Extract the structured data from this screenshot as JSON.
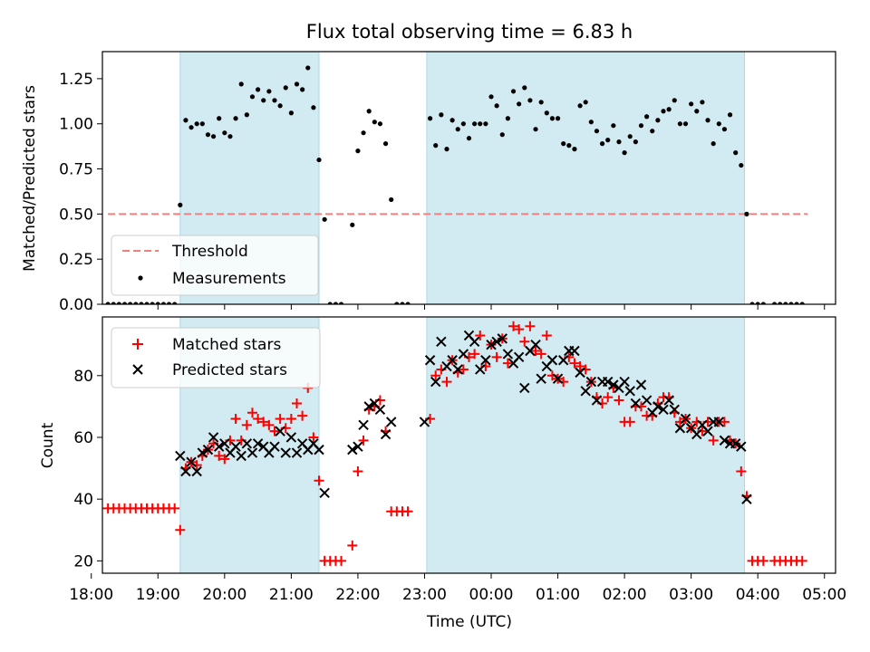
{
  "figure": {
    "title": "Flux total observing time = 6.83 h",
    "xlabel": "Time (UTC)"
  },
  "colors": {
    "shade": "#add8e6",
    "threshold": "#f08080",
    "measurement": "#000000",
    "matched": "#ff0000",
    "predicted": "#000000"
  },
  "chart_data": [
    {
      "type": "scatter",
      "panel": "top",
      "ylabel": "Matched/Predicted stars",
      "xlim": [
        "18:10",
        "05:10"
      ],
      "ylim": [
        0,
        1.4
      ],
      "x_ticks": [
        "18:00",
        "19:00",
        "20:00",
        "21:00",
        "22:00",
        "23:00",
        "00:00",
        "01:00",
        "02:00",
        "03:00",
        "04:00",
        "05:00"
      ],
      "y_ticks": [
        "0.00",
        "0.25",
        "0.50",
        "0.75",
        "1.00",
        "1.25"
      ],
      "shaded_intervals": [
        [
          "19:20",
          "21:25"
        ],
        [
          "23:02",
          "03:48"
        ]
      ],
      "legend_position": "lower left",
      "threshold": {
        "name": "Threshold",
        "value": 0.5,
        "x_range": [
          "18:15",
          "04:45"
        ],
        "style": "dashed"
      },
      "series": [
        {
          "name": "Measurements",
          "x": [
            "18:15",
            "18:20",
            "18:25",
            "18:30",
            "18:35",
            "18:40",
            "18:45",
            "18:50",
            "18:55",
            "19:00",
            "19:05",
            "19:10",
            "19:15",
            "19:20",
            "19:25",
            "19:30",
            "19:35",
            "19:40",
            "19:45",
            "19:50",
            "19:55",
            "20:00",
            "20:05",
            "20:10",
            "20:15",
            "20:20",
            "20:25",
            "20:30",
            "20:35",
            "20:40",
            "20:45",
            "20:50",
            "20:55",
            "21:00",
            "21:05",
            "21:10",
            "21:15",
            "21:20",
            "21:25",
            "21:30",
            "21:35",
            "21:40",
            "21:45",
            "21:55",
            "22:00",
            "22:05",
            "22:10",
            "22:15",
            "22:20",
            "22:25",
            "22:30",
            "22:35",
            "22:40",
            "22:45",
            "23:05",
            "23:10",
            "23:15",
            "23:20",
            "23:25",
            "23:30",
            "23:35",
            "23:40",
            "23:45",
            "23:50",
            "23:55",
            "00:00",
            "00:05",
            "00:10",
            "00:15",
            "00:20",
            "00:25",
            "00:30",
            "00:35",
            "00:40",
            "00:45",
            "00:50",
            "00:55",
            "01:00",
            "01:05",
            "01:10",
            "01:15",
            "01:20",
            "01:25",
            "01:30",
            "01:35",
            "01:40",
            "01:45",
            "01:50",
            "01:55",
            "02:00",
            "02:05",
            "02:10",
            "02:15",
            "02:20",
            "02:25",
            "02:30",
            "02:35",
            "02:40",
            "02:45",
            "02:50",
            "02:55",
            "03:00",
            "03:05",
            "03:10",
            "03:15",
            "03:20",
            "03:25",
            "03:30",
            "03:35",
            "03:40",
            "03:45",
            "03:50",
            "03:55",
            "04:00",
            "04:05",
            "04:15",
            "04:20",
            "04:25",
            "04:30",
            "04:35",
            "04:40"
          ],
          "y": [
            0,
            0,
            0,
            0,
            0,
            0,
            0,
            0,
            0,
            0,
            0,
            0,
            0,
            0.55,
            1.02,
            0.98,
            1.0,
            1.0,
            0.94,
            0.93,
            1.03,
            0.95,
            0.93,
            1.03,
            1.22,
            1.05,
            1.15,
            1.19,
            1.13,
            1.18,
            1.13,
            1.1,
            1.2,
            1.06,
            1.22,
            1.19,
            1.31,
            1.09,
            0.8,
            0.47,
            0,
            0,
            0,
            0.44,
            0.85,
            0.95,
            1.07,
            1.01,
            1.0,
            0.89,
            0.58,
            0,
            0,
            0,
            1.03,
            0.88,
            1.05,
            0.86,
            1.02,
            0.97,
            1.0,
            0.92,
            1.0,
            1.0,
            1.0,
            1.15,
            1.1,
            0.94,
            1.03,
            1.18,
            1.11,
            1.2,
            1.13,
            0.97,
            1.12,
            1.06,
            1.03,
            1.03,
            0.89,
            0.88,
            0.86,
            1.1,
            1.12,
            1.01,
            0.96,
            0.89,
            0.91,
            0.99,
            0.9,
            0.84,
            0.93,
            0.9,
            0.99,
            1.04,
            0.96,
            1.02,
            1.07,
            1.08,
            1.13,
            1.0,
            1.0,
            1.11,
            1.07,
            1.12,
            1.02,
            0.89,
            1.0,
            0.97,
            1.05,
            0.84,
            0.77,
            0.5,
            0,
            0,
            0,
            0,
            0,
            0,
            0,
            0,
            0
          ]
        }
      ]
    },
    {
      "type": "scatter",
      "panel": "bottom",
      "ylabel": "Count",
      "xlabel": "Time (UTC)",
      "xlim": [
        "18:10",
        "05:10"
      ],
      "ylim": [
        16,
        99
      ],
      "x_ticks": [
        "18:00",
        "19:00",
        "20:00",
        "21:00",
        "22:00",
        "23:00",
        "00:00",
        "01:00",
        "02:00",
        "03:00",
        "04:00",
        "05:00"
      ],
      "y_ticks": [
        "20",
        "40",
        "60",
        "80"
      ],
      "shaded_intervals": [
        [
          "19:20",
          "21:25"
        ],
        [
          "23:02",
          "03:48"
        ]
      ],
      "legend_position": "upper left",
      "series": [
        {
          "name": "Matched stars",
          "marker": "+",
          "x": [
            "18:15",
            "18:20",
            "18:25",
            "18:30",
            "18:35",
            "18:40",
            "18:45",
            "18:50",
            "18:55",
            "19:00",
            "19:05",
            "19:10",
            "19:15",
            "19:20",
            "19:25",
            "19:30",
            "19:35",
            "19:40",
            "19:45",
            "19:50",
            "19:55",
            "20:00",
            "20:05",
            "20:10",
            "20:15",
            "20:20",
            "20:25",
            "20:30",
            "20:35",
            "20:40",
            "20:45",
            "20:50",
            "20:55",
            "21:00",
            "21:05",
            "21:10",
            "21:15",
            "21:20",
            "21:25",
            "21:30",
            "21:35",
            "21:40",
            "21:45",
            "21:55",
            "22:00",
            "22:05",
            "22:10",
            "22:15",
            "22:20",
            "22:25",
            "22:30",
            "22:35",
            "22:40",
            "22:45",
            "23:05",
            "23:10",
            "23:15",
            "23:20",
            "23:25",
            "23:30",
            "23:35",
            "23:40",
            "23:45",
            "23:50",
            "23:55",
            "00:00",
            "00:05",
            "00:10",
            "00:15",
            "00:20",
            "00:25",
            "00:30",
            "00:35",
            "00:40",
            "00:45",
            "00:50",
            "00:55",
            "01:00",
            "01:05",
            "01:10",
            "01:15",
            "01:20",
            "01:25",
            "01:30",
            "01:35",
            "01:40",
            "01:45",
            "01:50",
            "01:55",
            "02:00",
            "02:05",
            "02:10",
            "02:15",
            "02:20",
            "02:25",
            "02:30",
            "02:35",
            "02:40",
            "02:45",
            "02:50",
            "02:55",
            "03:00",
            "03:05",
            "03:10",
            "03:15",
            "03:20",
            "03:25",
            "03:30",
            "03:35",
            "03:40",
            "03:45",
            "03:50",
            "03:55",
            "04:00",
            "04:05",
            "04:15",
            "04:20",
            "04:25",
            "04:30",
            "04:35",
            "04:40"
          ],
          "y": [
            37,
            37,
            37,
            37,
            37,
            37,
            37,
            37,
            37,
            37,
            37,
            37,
            37,
            30,
            50,
            52,
            51,
            54,
            56,
            58,
            54,
            53,
            59,
            66,
            59,
            64,
            68,
            66,
            65,
            64,
            62,
            66,
            63,
            66,
            71,
            67,
            76,
            60,
            46,
            20,
            20,
            20,
            20,
            25,
            49,
            59,
            69,
            70,
            72,
            62,
            36,
            36,
            36,
            36,
            66,
            80,
            82,
            78,
            85,
            81,
            82,
            86,
            87,
            93,
            83,
            90,
            86,
            92,
            84,
            96,
            95,
            91,
            96,
            88,
            87,
            93,
            80,
            79,
            78,
            86,
            84,
            83,
            82,
            78,
            73,
            71,
            73,
            76,
            72,
            65,
            65,
            70,
            70,
            67,
            67,
            71,
            73,
            73,
            68,
            65,
            66,
            63,
            65,
            62,
            65,
            59,
            65,
            65,
            59,
            58,
            49,
            41,
            20,
            20,
            20,
            20,
            20,
            20,
            20,
            20,
            20
          ]
        },
        {
          "name": "Predicted stars",
          "marker": "x",
          "x": [
            "19:20",
            "19:25",
            "19:30",
            "19:35",
            "19:40",
            "19:45",
            "19:50",
            "19:55",
            "20:00",
            "20:05",
            "20:10",
            "20:15",
            "20:20",
            "20:25",
            "20:30",
            "20:35",
            "20:40",
            "20:45",
            "20:50",
            "20:55",
            "21:00",
            "21:05",
            "21:10",
            "21:15",
            "21:20",
            "21:25",
            "21:30",
            "21:55",
            "22:00",
            "22:05",
            "22:10",
            "22:15",
            "22:20",
            "22:25",
            "22:30",
            "23:00",
            "23:05",
            "23:10",
            "23:15",
            "23:20",
            "23:25",
            "23:30",
            "23:35",
            "23:40",
            "23:45",
            "23:50",
            "23:55",
            "00:00",
            "00:05",
            "00:10",
            "00:15",
            "00:20",
            "00:25",
            "00:30",
            "00:35",
            "00:40",
            "00:45",
            "00:50",
            "00:55",
            "01:00",
            "01:05",
            "01:10",
            "01:15",
            "01:20",
            "01:25",
            "01:30",
            "01:35",
            "01:40",
            "01:45",
            "01:50",
            "01:55",
            "02:00",
            "02:05",
            "02:10",
            "02:15",
            "02:20",
            "02:25",
            "02:30",
            "02:35",
            "02:40",
            "02:45",
            "02:50",
            "02:55",
            "03:00",
            "03:05",
            "03:10",
            "03:15",
            "03:20",
            "03:25",
            "03:30",
            "03:35",
            "03:40",
            "03:45",
            "03:50"
          ],
          "y": [
            54,
            49,
            52,
            49,
            55,
            56,
            60,
            57,
            58,
            55,
            57,
            54,
            58,
            55,
            58,
            57,
            55,
            57,
            62,
            55,
            60,
            55,
            58,
            56,
            58,
            56,
            42,
            56,
            57,
            64,
            70,
            71,
            69,
            61,
            65,
            65,
            85,
            78,
            91,
            83,
            85,
            82,
            87,
            93,
            91,
            82,
            85,
            90,
            91,
            92,
            87,
            84,
            86,
            76,
            88,
            90,
            79,
            83,
            85,
            79,
            85,
            88,
            88,
            81,
            75,
            78,
            72,
            78,
            78,
            77,
            76,
            78,
            75,
            71,
            77,
            72,
            68,
            70,
            69,
            72,
            69,
            63,
            66,
            63,
            61,
            64,
            62,
            65,
            65,
            59,
            58,
            58,
            57,
            40
          ]
        }
      ]
    }
  ]
}
